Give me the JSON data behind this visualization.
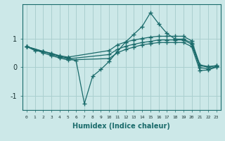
{
  "xlabel": "Humidex (Indice chaleur)",
  "bg_color": "#cce8e8",
  "line_color": "#1a6b6b",
  "grid_color": "#aacfcf",
  "xlim": [
    -0.5,
    23.5
  ],
  "ylim": [
    -1.5,
    2.2
  ],
  "yticks": [
    -1,
    0,
    1
  ],
  "xticks": [
    0,
    1,
    2,
    3,
    4,
    5,
    6,
    7,
    8,
    9,
    10,
    11,
    12,
    13,
    14,
    15,
    16,
    17,
    18,
    19,
    20,
    21,
    22,
    23
  ],
  "series": [
    {
      "x": [
        0,
        1,
        2,
        3,
        4,
        5,
        6,
        7,
        8,
        9,
        10,
        11,
        12,
        13,
        14,
        15,
        16,
        17,
        18,
        19,
        20,
        21,
        22,
        23
      ],
      "y": [
        0.72,
        0.58,
        0.55,
        0.48,
        0.38,
        0.32,
        0.22,
        -1.28,
        -0.32,
        -0.08,
        0.2,
        0.55,
        0.88,
        1.15,
        1.42,
        1.9,
        1.52,
        1.18,
        0.98,
        0.98,
        0.85,
        0.05,
        0.0,
        0.05
      ]
    },
    {
      "x": [
        0,
        2,
        3,
        4,
        5,
        10,
        11,
        12,
        13,
        14,
        15,
        16,
        17,
        18,
        19,
        20,
        21,
        22,
        23
      ],
      "y": [
        0.72,
        0.55,
        0.48,
        0.4,
        0.35,
        0.58,
        0.78,
        0.88,
        0.95,
        1.0,
        1.05,
        1.08,
        1.08,
        1.08,
        1.08,
        0.92,
        0.08,
        0.02,
        0.05
      ]
    },
    {
      "x": [
        0,
        2,
        3,
        4,
        5,
        10,
        11,
        12,
        13,
        14,
        15,
        16,
        17,
        18,
        19,
        20,
        21,
        22,
        23
      ],
      "y": [
        0.72,
        0.55,
        0.44,
        0.36,
        0.29,
        0.44,
        0.62,
        0.73,
        0.8,
        0.86,
        0.9,
        0.95,
        0.95,
        0.95,
        0.95,
        0.8,
        -0.02,
        -0.06,
        0.02
      ]
    },
    {
      "x": [
        0,
        2,
        3,
        4,
        5,
        10,
        11,
        12,
        13,
        14,
        15,
        16,
        17,
        18,
        19,
        20,
        21,
        22,
        23
      ],
      "y": [
        0.72,
        0.5,
        0.4,
        0.32,
        0.25,
        0.3,
        0.5,
        0.62,
        0.7,
        0.78,
        0.82,
        0.86,
        0.86,
        0.86,
        0.86,
        0.72,
        -0.12,
        -0.1,
        0.0
      ]
    }
  ]
}
